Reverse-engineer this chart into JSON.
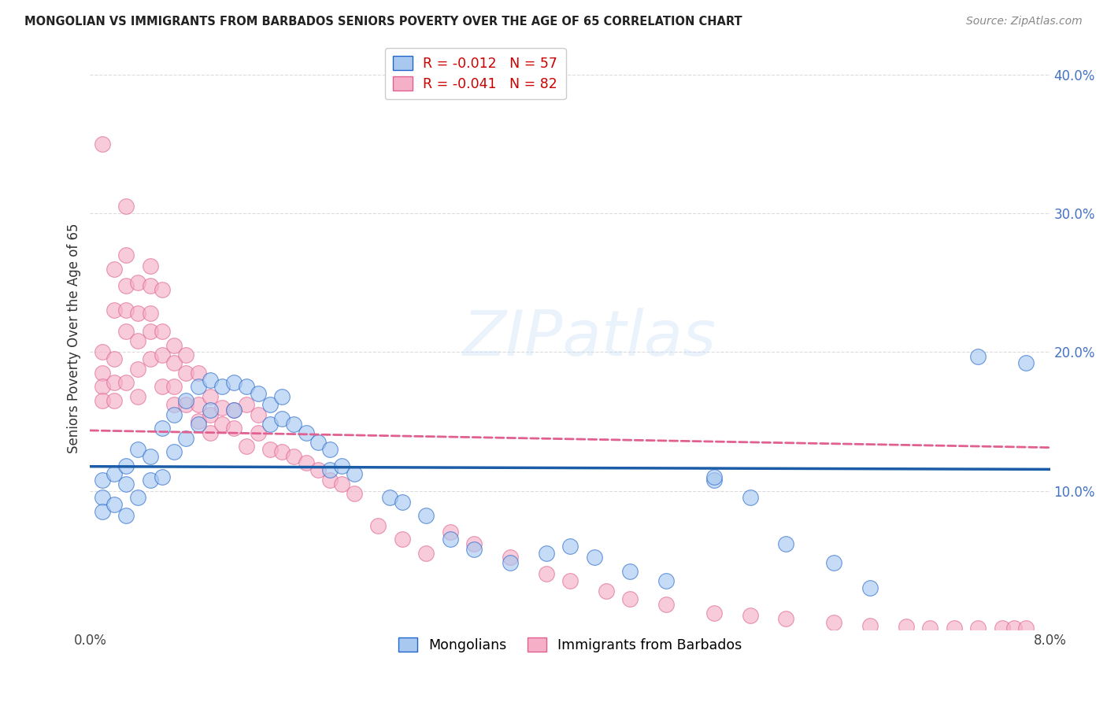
{
  "title": "MONGOLIAN VS IMMIGRANTS FROM BARBADOS SENIORS POVERTY OVER THE AGE OF 65 CORRELATION CHART",
  "source": "Source: ZipAtlas.com",
  "ylabel": "Seniors Poverty Over the Age of 65",
  "watermark": "ZIPatlas",
  "mongolians_label": "Mongolians",
  "barbados_label": "Immigrants from Barbados",
  "mongo_R": -0.012,
  "mongo_N": 57,
  "barb_R": -0.041,
  "barb_N": 82,
  "mongo_color": "#a8c8f0",
  "mongo_edge": "#2266cc",
  "barb_color": "#f5b0c8",
  "barb_edge": "#e06090",
  "mongo_line_color": "#1a5ca8",
  "barb_line_color": "#e06090",
  "ylim": [
    0,
    0.42
  ],
  "xlim": [
    0,
    0.08
  ],
  "mongo_x": [
    0.001,
    0.001,
    0.001,
    0.002,
    0.002,
    0.003,
    0.003,
    0.003,
    0.004,
    0.004,
    0.005,
    0.005,
    0.006,
    0.006,
    0.007,
    0.007,
    0.008,
    0.008,
    0.009,
    0.009,
    0.01,
    0.01,
    0.011,
    0.012,
    0.012,
    0.013,
    0.014,
    0.015,
    0.015,
    0.016,
    0.016,
    0.017,
    0.018,
    0.019,
    0.02,
    0.02,
    0.021,
    0.022,
    0.025,
    0.026,
    0.028,
    0.03,
    0.032,
    0.035,
    0.038,
    0.04,
    0.042,
    0.045,
    0.048,
    0.052,
    0.055,
    0.058,
    0.062,
    0.065,
    0.052,
    0.074,
    0.078
  ],
  "mongo_y": [
    0.108,
    0.095,
    0.085,
    0.112,
    0.09,
    0.118,
    0.105,
    0.082,
    0.13,
    0.095,
    0.125,
    0.108,
    0.145,
    0.11,
    0.155,
    0.128,
    0.165,
    0.138,
    0.175,
    0.148,
    0.18,
    0.158,
    0.175,
    0.178,
    0.158,
    0.175,
    0.17,
    0.162,
    0.148,
    0.168,
    0.152,
    0.148,
    0.142,
    0.135,
    0.13,
    0.115,
    0.118,
    0.112,
    0.095,
    0.092,
    0.082,
    0.065,
    0.058,
    0.048,
    0.055,
    0.06,
    0.052,
    0.042,
    0.035,
    0.108,
    0.095,
    0.062,
    0.048,
    0.03,
    0.11,
    0.197,
    0.192
  ],
  "barb_x": [
    0.001,
    0.001,
    0.001,
    0.001,
    0.001,
    0.002,
    0.002,
    0.002,
    0.002,
    0.002,
    0.003,
    0.003,
    0.003,
    0.003,
    0.003,
    0.003,
    0.004,
    0.004,
    0.004,
    0.004,
    0.004,
    0.005,
    0.005,
    0.005,
    0.005,
    0.005,
    0.006,
    0.006,
    0.006,
    0.006,
    0.007,
    0.007,
    0.007,
    0.007,
    0.008,
    0.008,
    0.008,
    0.009,
    0.009,
    0.009,
    0.01,
    0.01,
    0.01,
    0.011,
    0.011,
    0.012,
    0.012,
    0.013,
    0.013,
    0.014,
    0.014,
    0.015,
    0.016,
    0.017,
    0.018,
    0.019,
    0.02,
    0.021,
    0.022,
    0.024,
    0.026,
    0.028,
    0.03,
    0.032,
    0.035,
    0.038,
    0.04,
    0.043,
    0.045,
    0.048,
    0.052,
    0.055,
    0.058,
    0.062,
    0.065,
    0.068,
    0.07,
    0.072,
    0.074,
    0.076,
    0.077,
    0.078
  ],
  "barb_y": [
    0.35,
    0.2,
    0.185,
    0.175,
    0.165,
    0.26,
    0.23,
    0.195,
    0.178,
    0.165,
    0.305,
    0.27,
    0.248,
    0.23,
    0.215,
    0.178,
    0.25,
    0.228,
    0.208,
    0.188,
    0.168,
    0.262,
    0.248,
    0.228,
    0.215,
    0.195,
    0.245,
    0.215,
    0.198,
    0.175,
    0.205,
    0.192,
    0.175,
    0.162,
    0.198,
    0.185,
    0.162,
    0.185,
    0.162,
    0.15,
    0.168,
    0.155,
    0.142,
    0.16,
    0.148,
    0.158,
    0.145,
    0.162,
    0.132,
    0.155,
    0.142,
    0.13,
    0.128,
    0.125,
    0.12,
    0.115,
    0.108,
    0.105,
    0.098,
    0.075,
    0.065,
    0.055,
    0.07,
    0.062,
    0.052,
    0.04,
    0.035,
    0.028,
    0.022,
    0.018,
    0.012,
    0.01,
    0.008,
    0.005,
    0.003,
    0.002,
    0.001,
    0.001,
    0.001,
    0.001,
    0.001,
    0.001
  ]
}
